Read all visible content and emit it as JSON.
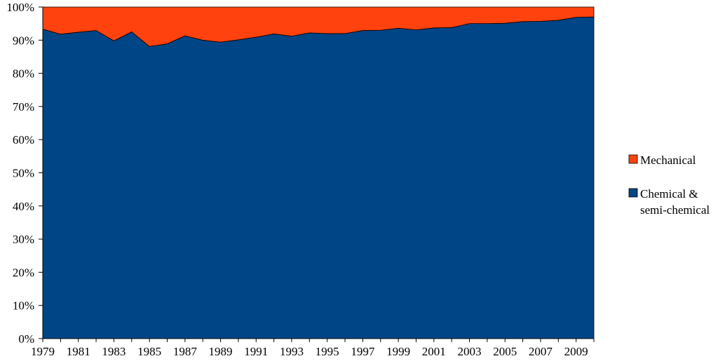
{
  "chart_data": {
    "type": "area",
    "stacked": "percent",
    "x": [
      1979,
      1980,
      1981,
      1982,
      1983,
      1984,
      1985,
      1986,
      1987,
      1988,
      1989,
      1990,
      1991,
      1992,
      1993,
      1994,
      1995,
      1996,
      1997,
      1998,
      1999,
      2000,
      2001,
      2002,
      2003,
      2004,
      2005,
      2006,
      2007,
      2008,
      2009,
      2010
    ],
    "x_tick_labels": [
      "1979",
      "1981",
      "1983",
      "1985",
      "1987",
      "1989",
      "1991",
      "1993",
      "1995",
      "1997",
      "1999",
      "2001",
      "2003",
      "2005",
      "2007",
      "2009"
    ],
    "y_tick_labels": [
      "0%",
      "10%",
      "20%",
      "30%",
      "40%",
      "50%",
      "60%",
      "70%",
      "80%",
      "90%",
      "100%"
    ],
    "ylim": [
      0,
      100
    ],
    "series": [
      {
        "name": "Chemical & semi-chemical",
        "color": "#004586",
        "values": [
          93.3,
          91.8,
          92.4,
          92.9,
          89.8,
          92.5,
          88.1,
          88.9,
          91.3,
          90.0,
          89.4,
          90.1,
          90.9,
          91.9,
          91.2,
          92.2,
          92.0,
          92.0,
          92.9,
          93.0,
          93.6,
          93.1,
          93.7,
          93.8,
          95.0,
          95.0,
          95.1,
          95.6,
          95.7,
          96.0,
          96.9,
          97.0
        ]
      },
      {
        "name": "Mechanical",
        "color": "#ff420e",
        "values": [
          6.7,
          8.2,
          7.6,
          7.1,
          10.2,
          7.5,
          11.9,
          11.1,
          8.7,
          10.0,
          10.6,
          9.9,
          9.1,
          8.1,
          8.8,
          7.8,
          8.0,
          8.0,
          7.1,
          7.0,
          6.4,
          6.9,
          6.3,
          6.2,
          5.0,
          5.0,
          4.9,
          4.4,
          4.3,
          4.0,
          3.1,
          3.0
        ]
      }
    ],
    "legend": {
      "placement": "right",
      "entries": [
        {
          "label": "Mechanical",
          "color": "#ff420e"
        },
        {
          "label_lines": [
            "Chemical &",
            "semi-chemical"
          ],
          "color": "#004586"
        }
      ]
    },
    "grid": false,
    "title": "",
    "xlabel": "",
    "ylabel": ""
  }
}
